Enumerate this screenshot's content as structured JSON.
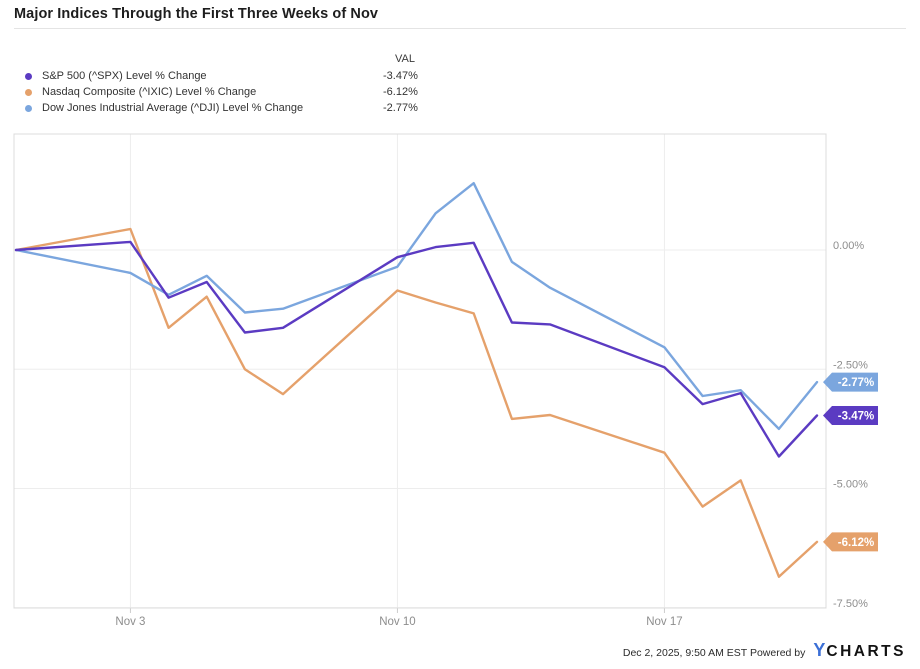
{
  "title": "Major Indices Through the First Three Weeks of Nov",
  "legend": {
    "val_header": "VAL",
    "rows": [
      {
        "label": "S&P 500 (^SPX) Level % Change",
        "value": "-3.47%",
        "color": "#5b3bc2"
      },
      {
        "label": "Nasdaq Composite (^IXIC) Level % Change",
        "value": "-6.12%",
        "color": "#e5a16b"
      },
      {
        "label": "Dow Jones Industrial Average (^DJI) Level % Change",
        "value": "-2.77%",
        "color": "#7ba6de"
      }
    ]
  },
  "chart_data": {
    "type": "line",
    "title": "Major Indices Through the First Three Weeks of Nov",
    "x_unit": "calendar days from Oct 31 baseline",
    "x_dates": [
      "Oct 31",
      "Nov 3",
      "Nov 4",
      "Nov 5",
      "Nov 6",
      "Nov 7",
      "Nov 10",
      "Nov 11",
      "Nov 12",
      "Nov 13",
      "Nov 14",
      "Nov 17",
      "Nov 18",
      "Nov 19",
      "Nov 20",
      "Nov 21"
    ],
    "x_offsets": [
      0,
      3,
      4,
      5,
      6,
      7,
      10,
      11,
      12,
      13,
      14,
      17,
      18,
      19,
      20,
      21
    ],
    "series": [
      {
        "name": "S&P 500 (^SPX) Level % Change",
        "color": "#5b3bc2",
        "badge_label": "-3.47%",
        "values": [
          0,
          0.17,
          -1.0,
          -0.67,
          -1.73,
          -1.63,
          -0.15,
          0.06,
          0.15,
          -1.52,
          -1.56,
          -2.46,
          -3.23,
          -3.0,
          -4.33,
          -3.47
        ]
      },
      {
        "name": "Nasdaq Composite (^IXIC) Level % Change",
        "color": "#e5a16b",
        "badge_label": "-6.12%",
        "values": [
          0,
          0.44,
          -1.63,
          -0.98,
          -2.5,
          -3.02,
          -0.85,
          -1.1,
          -1.33,
          -3.54,
          -3.46,
          -4.25,
          -5.38,
          -4.83,
          -6.85,
          -6.12
        ]
      },
      {
        "name": "Dow Jones Industrial Average (^DJI) Level % Change",
        "color": "#7ba6de",
        "badge_label": "-2.77%",
        "values": [
          0,
          -0.48,
          -0.94,
          -0.54,
          -1.31,
          -1.23,
          -0.35,
          0.77,
          1.4,
          -0.25,
          -0.79,
          -2.04,
          -3.06,
          -2.94,
          -3.75,
          -2.77
        ]
      }
    ],
    "x_ticks": [
      {
        "label": "Nov 3",
        "offset": 3
      },
      {
        "label": "Nov 10",
        "offset": 10
      },
      {
        "label": "Nov 17",
        "offset": 17
      }
    ],
    "y_ticks": [
      {
        "label": "0.00%",
        "value": 0
      },
      {
        "label": "-2.50%",
        "value": -2.5
      },
      {
        "label": "-5.00%",
        "value": -5
      },
      {
        "label": "-7.50%",
        "value": -7.5
      }
    ],
    "ylim": [
      -7.5,
      2.4
    ],
    "grid": true,
    "legend_position": "top-left"
  },
  "footer": {
    "timestamp": "Dec 2, 2025, 9:50 AM EST",
    "powered_by": "Powered by",
    "logo_y": "Y",
    "logo_rest": "CHARTS"
  }
}
